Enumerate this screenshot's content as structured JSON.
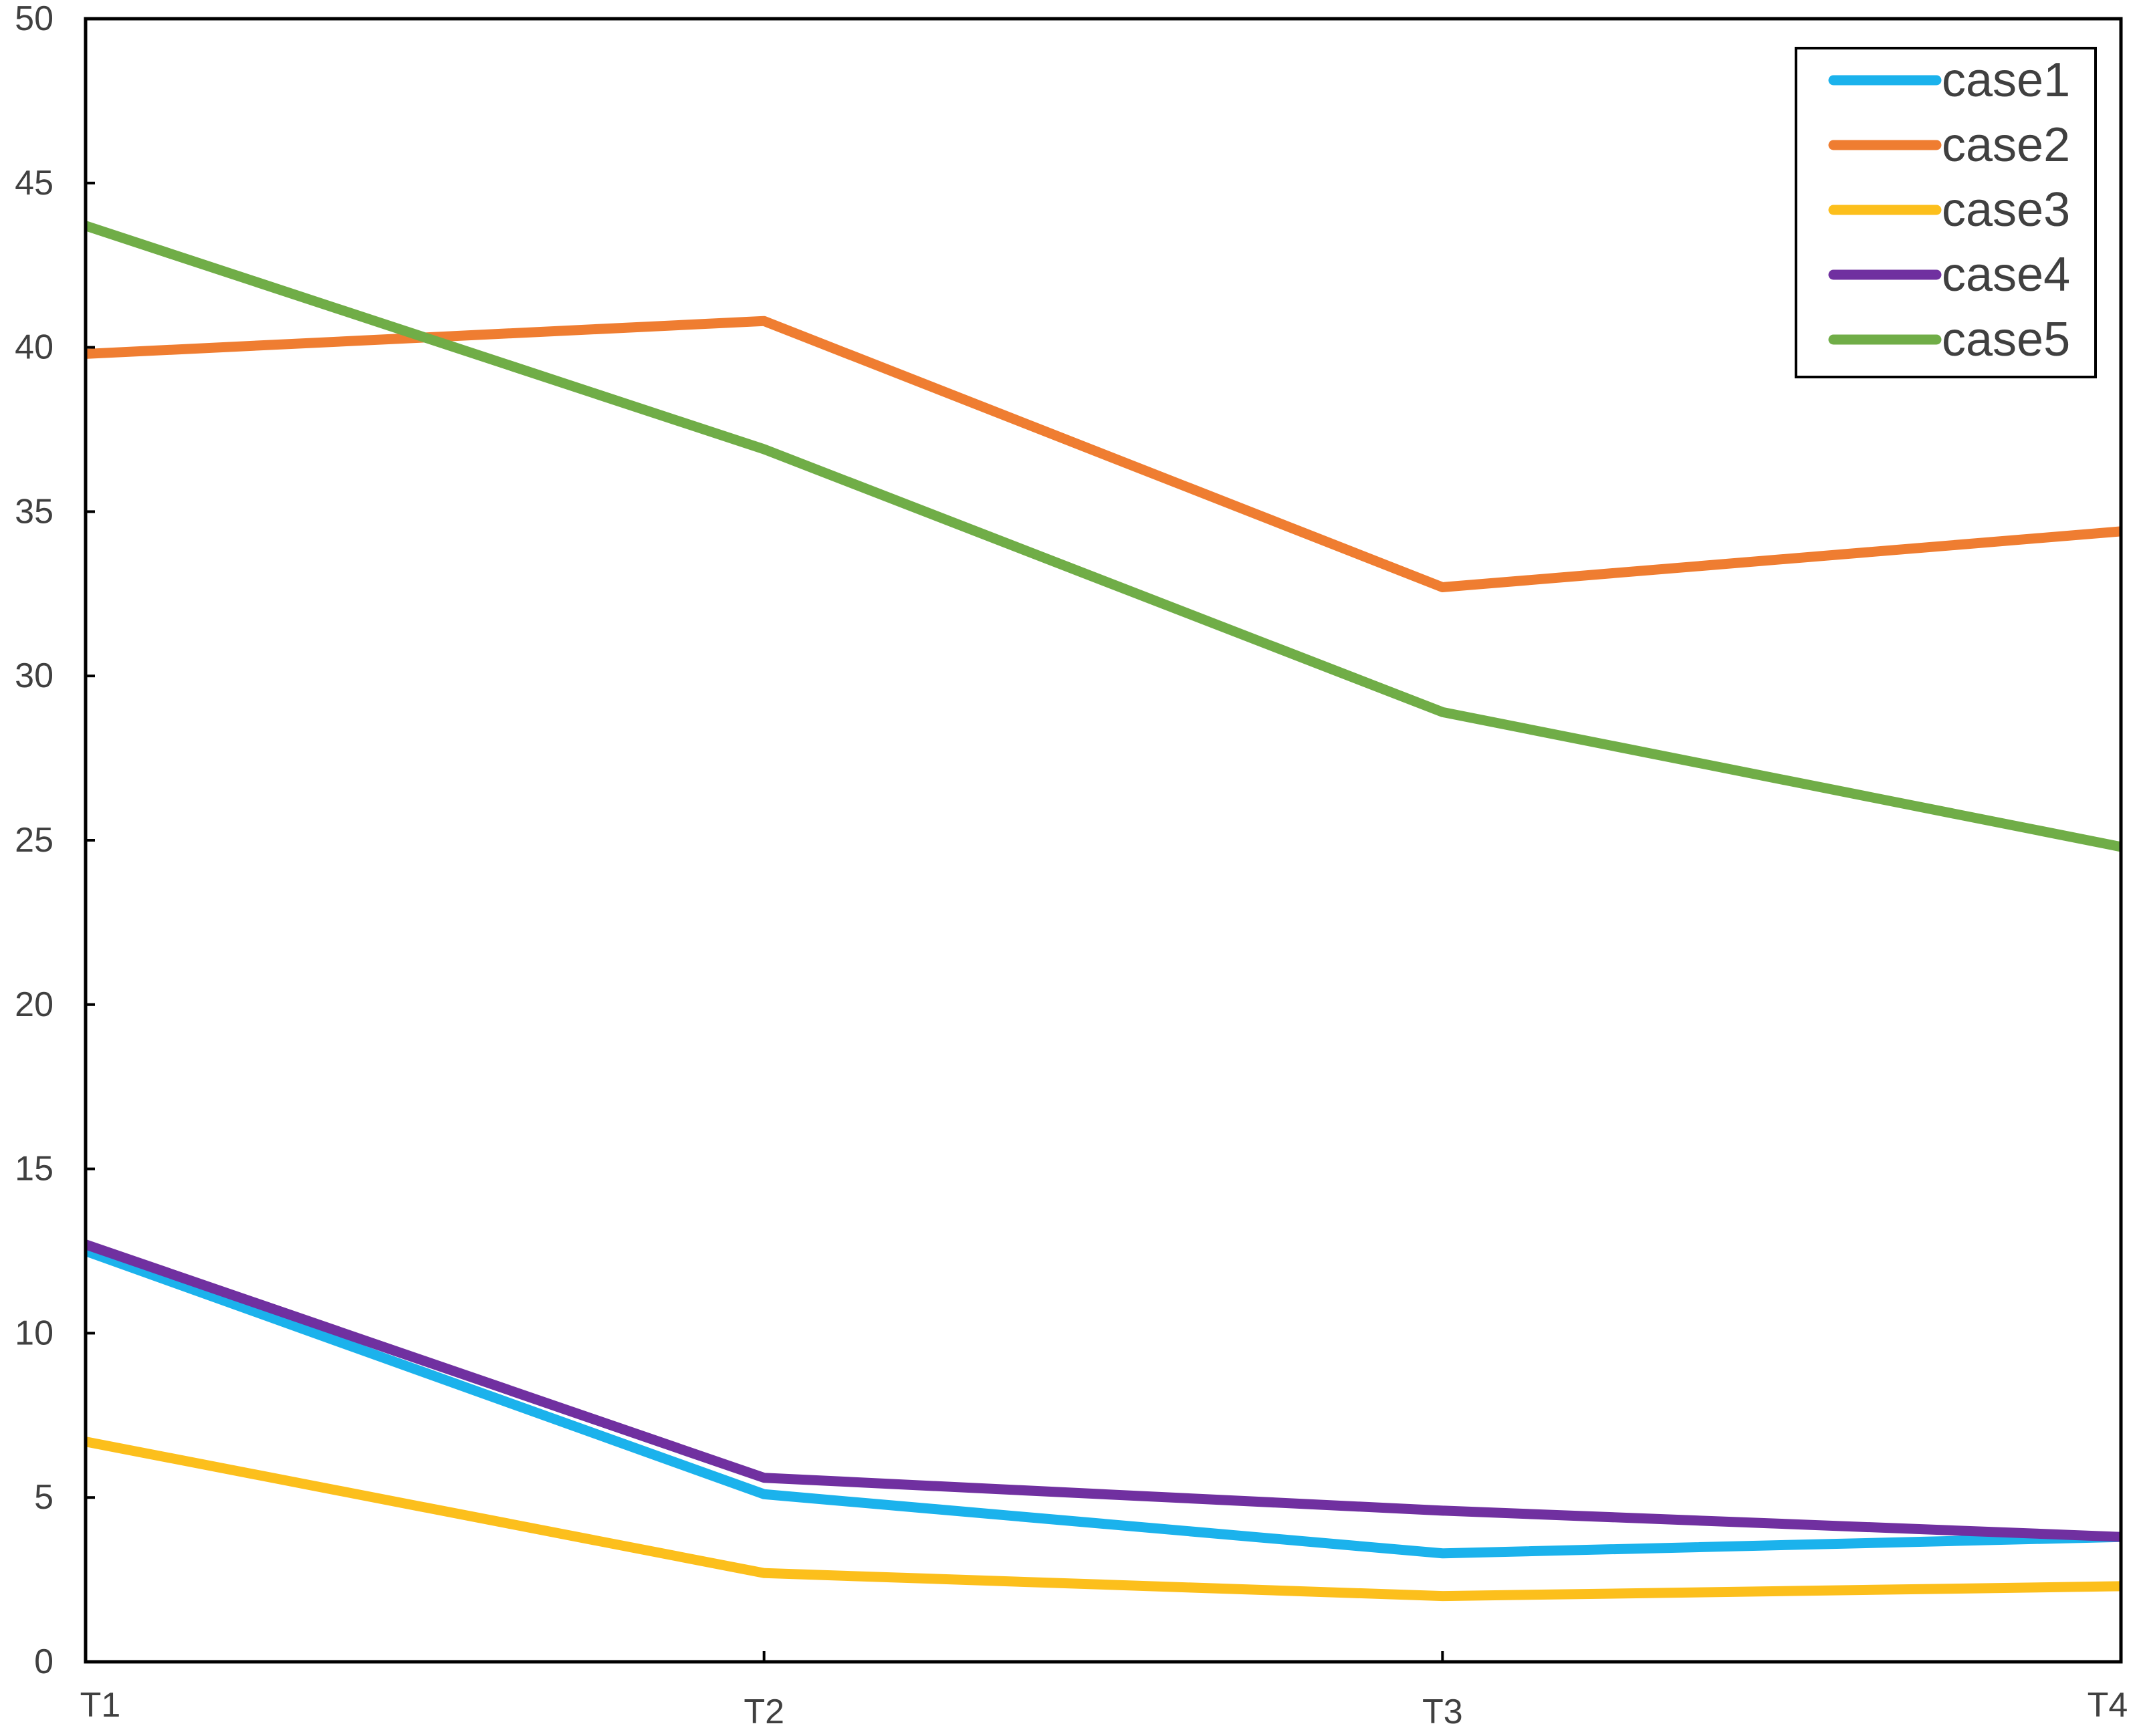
{
  "chart_data": {
    "type": "line",
    "title": "",
    "xlabel": "",
    "ylabel": "",
    "categories": [
      "T1",
      "T2",
      "T3",
      "T4"
    ],
    "ylim": [
      0,
      50
    ],
    "yticks": [
      "0",
      "5",
      "10",
      "15",
      "20",
      "25",
      "30",
      "35",
      "40",
      "45",
      "50"
    ],
    "grid": false,
    "legend_position": "top-right",
    "series": [
      {
        "name": "case1",
        "color": "#1BB2EC",
        "values": [
          12.5,
          5.1,
          3.3,
          3.8
        ]
      },
      {
        "name": "case2",
        "color": "#EF7D31",
        "values": [
          39.8,
          40.8,
          32.7,
          34.4
        ]
      },
      {
        "name": "case3",
        "color": "#FCBF1C",
        "values": [
          6.7,
          2.7,
          2.0,
          2.3
        ]
      },
      {
        "name": "case4",
        "color": "#7030A0",
        "values": [
          12.7,
          5.6,
          4.6,
          3.8
        ]
      },
      {
        "name": "case5",
        "color": "#70AD47",
        "values": [
          43.7,
          36.9,
          28.9,
          24.8
        ]
      }
    ]
  }
}
